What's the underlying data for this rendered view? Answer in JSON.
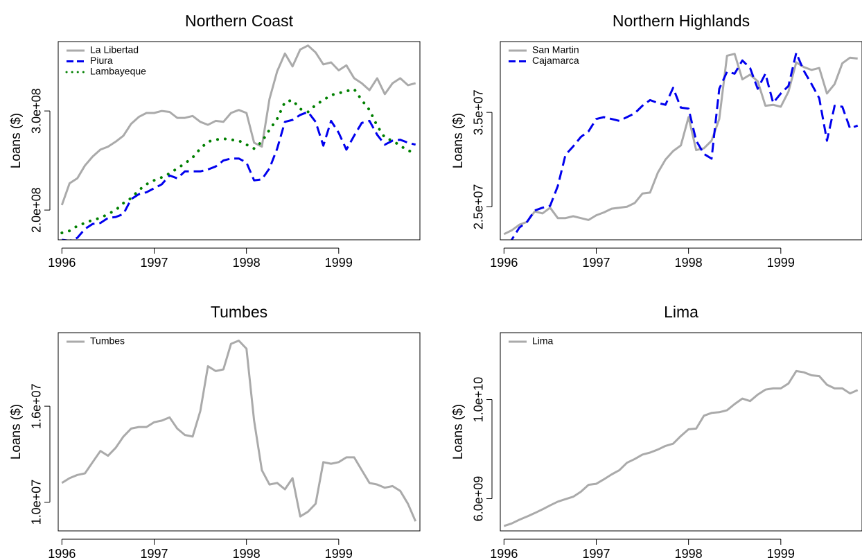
{
  "chart_data": [
    {
      "type": "line",
      "title": "Northern Coast",
      "xlabel": "",
      "ylabel": "Loans ($)",
      "xlim": [
        1995.96,
        1999.88
      ],
      "ylim": [
        170000000,
        370000000
      ],
      "xticks": [
        {
          "v": 1996,
          "label": "1996"
        },
        {
          "v": 1997,
          "label": "1997"
        },
        {
          "v": 1998,
          "label": "1998"
        },
        {
          "v": 1999,
          "label": "1999"
        }
      ],
      "yticks": [
        {
          "v": 200000000,
          "label": "2.0e+08"
        },
        {
          "v": 300000000,
          "label": "3.0e+08"
        }
      ],
      "legend": "top-left",
      "x": [
        1996.0,
        1996.083,
        1996.167,
        1996.25,
        1996.333,
        1996.417,
        1996.5,
        1996.583,
        1996.667,
        1996.75,
        1996.833,
        1996.917,
        1997.0,
        1997.083,
        1997.167,
        1997.25,
        1997.333,
        1997.417,
        1997.5,
        1997.583,
        1997.667,
        1997.75,
        1997.833,
        1997.917,
        1998.0,
        1998.083,
        1998.167,
        1998.25,
        1998.333,
        1998.417,
        1998.5,
        1998.583,
        1998.667,
        1998.75,
        1998.833,
        1998.917,
        1999.0,
        1999.083,
        1999.167,
        1999.25,
        1999.333,
        1999.417,
        1999.5,
        1999.583,
        1999.667,
        1999.75,
        1999.833
      ],
      "series": [
        {
          "name": "La Libertad",
          "color": "#aaaaaa",
          "dash": "solid",
          "values": [
            205000000,
            227000000,
            232000000,
            245000000,
            254000000,
            261000000,
            264000000,
            269000000,
            275000000,
            287000000,
            294000000,
            298000000,
            298000000,
            300000000,
            299000000,
            293000000,
            293000000,
            295000000,
            289000000,
            286000000,
            290000000,
            289000000,
            298000000,
            301000000,
            298000000,
            268000000,
            264000000,
            312000000,
            340000000,
            358000000,
            345000000,
            362000000,
            366000000,
            359000000,
            347000000,
            349000000,
            341000000,
            346000000,
            333000000,
            328000000,
            321000000,
            333000000,
            317000000,
            328000000,
            333000000,
            326000000,
            328000000
          ]
        },
        {
          "name": "Piura",
          "color": "#0000ee",
          "dash": "dashed",
          "values": [
            170000000,
            169000000,
            172000000,
            181000000,
            186000000,
            187000000,
            192000000,
            193000000,
            196000000,
            211000000,
            216000000,
            218000000,
            222000000,
            226000000,
            235000000,
            232000000,
            239000000,
            239000000,
            239000000,
            241000000,
            244000000,
            250000000,
            252000000,
            252000000,
            248000000,
            230000000,
            231000000,
            242000000,
            262000000,
            289000000,
            291000000,
            296000000,
            299000000,
            289000000,
            265000000,
            290000000,
            278000000,
            261000000,
            275000000,
            288000000,
            290000000,
            276000000,
            266000000,
            270000000,
            271000000,
            268000000,
            266000000
          ]
        },
        {
          "name": "Lambayeque",
          "color": "#008000",
          "dash": "dotted",
          "values": [
            177000000,
            179000000,
            184000000,
            187000000,
            190000000,
            192000000,
            196000000,
            200000000,
            207000000,
            212000000,
            220000000,
            226000000,
            230000000,
            233000000,
            237000000,
            242000000,
            247000000,
            253000000,
            262000000,
            269000000,
            271000000,
            272000000,
            271000000,
            270000000,
            266000000,
            262000000,
            269000000,
            281000000,
            292000000,
            309000000,
            311000000,
            302000000,
            299000000,
            306000000,
            311000000,
            316000000,
            318000000,
            320000000,
            322000000,
            311000000,
            301000000,
            285000000,
            273000000,
            270000000,
            265000000,
            260000000,
            258000000
          ]
        }
      ]
    },
    {
      "type": "line",
      "title": "Northern Highlands",
      "xlabel": "",
      "ylabel": "Loans ($)",
      "xlim": [
        1995.96,
        1999.88
      ],
      "ylim": [
        21500000,
        42500000
      ],
      "xticks": [
        {
          "v": 1996,
          "label": "1996"
        },
        {
          "v": 1997,
          "label": "1997"
        },
        {
          "v": 1998,
          "label": "1998"
        },
        {
          "v": 1999,
          "label": "1999"
        }
      ],
      "yticks": [
        {
          "v": 25000000,
          "label": "2.5e+07"
        },
        {
          "v": 35000000,
          "label": "3.5e+07"
        }
      ],
      "legend": "top-left",
      "x": [
        1996.0,
        1996.083,
        1996.167,
        1996.25,
        1996.333,
        1996.417,
        1996.5,
        1996.583,
        1996.667,
        1996.75,
        1996.833,
        1996.917,
        1997.0,
        1997.083,
        1997.167,
        1997.25,
        1997.333,
        1997.417,
        1997.5,
        1997.583,
        1997.667,
        1997.75,
        1997.833,
        1997.917,
        1998.0,
        1998.083,
        1998.167,
        1998.25,
        1998.333,
        1998.417,
        1998.5,
        1998.583,
        1998.667,
        1998.75,
        1998.833,
        1998.917,
        1999.0,
        1999.083,
        1999.167,
        1999.25,
        1999.333,
        1999.417,
        1999.5,
        1999.583,
        1999.667,
        1999.75,
        1999.833
      ],
      "series": [
        {
          "name": "San Martin",
          "color": "#aaaaaa",
          "dash": "solid",
          "values": [
            22100000,
            22500000,
            23100000,
            23400000,
            24500000,
            24300000,
            24900000,
            23800000,
            23800000,
            24000000,
            23800000,
            23600000,
            24100000,
            24400000,
            24800000,
            24900000,
            25000000,
            25400000,
            26400000,
            26500000,
            28600000,
            30000000,
            30900000,
            31500000,
            34500000,
            31000000,
            31200000,
            32000000,
            34300000,
            41000000,
            41200000,
            38500000,
            39000000,
            38300000,
            35700000,
            35800000,
            35600000,
            37200000,
            40300000,
            39800000,
            39500000,
            39700000,
            37000000,
            38000000,
            40200000,
            40800000,
            40700000
          ]
        },
        {
          "name": "Cajamarca",
          "color": "#0000ee",
          "dash": "dashed",
          "values": [
            19500000,
            21500000,
            22800000,
            23400000,
            24600000,
            24900000,
            25100000,
            27200000,
            30500000,
            31400000,
            32400000,
            33000000,
            34300000,
            34500000,
            34300000,
            34100000,
            34500000,
            34900000,
            35700000,
            36300000,
            36000000,
            35800000,
            37600000,
            35500000,
            35400000,
            32000000,
            30600000,
            30100000,
            37500000,
            39300000,
            39100000,
            40500000,
            39700000,
            37500000,
            39100000,
            36000000,
            37000000,
            37800000,
            41300000,
            39400000,
            38000000,
            36500000,
            32000000,
            35700000,
            35600000,
            33300000,
            33600000
          ]
        }
      ]
    },
    {
      "type": "line",
      "title": "Tumbes",
      "xlabel": "",
      "ylabel": "Loans ($)",
      "xlim": [
        1995.96,
        1999.88
      ],
      "ylim": [
        8200000,
        20600000
      ],
      "xticks": [
        {
          "v": 1996,
          "label": "1996"
        },
        {
          "v": 1997,
          "label": "1997"
        },
        {
          "v": 1998,
          "label": "1998"
        },
        {
          "v": 1999,
          "label": "1999"
        }
      ],
      "yticks": [
        {
          "v": 10000000,
          "label": "1.0e+07"
        },
        {
          "v": 16000000,
          "label": "1.6e+07"
        }
      ],
      "legend": "top-left",
      "x": [
        1996.0,
        1996.083,
        1996.167,
        1996.25,
        1996.333,
        1996.417,
        1996.5,
        1996.583,
        1996.667,
        1996.75,
        1996.833,
        1996.917,
        1997.0,
        1997.083,
        1997.167,
        1997.25,
        1997.333,
        1997.417,
        1997.5,
        1997.583,
        1997.667,
        1997.75,
        1997.833,
        1997.917,
        1998.0,
        1998.083,
        1998.167,
        1998.25,
        1998.333,
        1998.417,
        1998.5,
        1998.583,
        1998.667,
        1998.75,
        1998.833,
        1998.917,
        1999.0,
        1999.083,
        1999.167,
        1999.25,
        1999.333,
        1999.417,
        1999.5,
        1999.583,
        1999.667,
        1999.75,
        1999.833
      ],
      "series": [
        {
          "name": "Tumbes",
          "color": "#aaaaaa",
          "dash": "solid",
          "values": [
            11200000,
            11500000,
            11700000,
            11800000,
            12500000,
            13200000,
            12900000,
            13400000,
            14100000,
            14600000,
            14700000,
            14700000,
            15000000,
            15100000,
            15300000,
            14600000,
            14200000,
            14100000,
            15700000,
            18500000,
            18200000,
            18300000,
            19900000,
            20100000,
            19600000,
            15100000,
            12000000,
            11100000,
            11200000,
            10800000,
            11500000,
            9100000,
            9400000,
            9900000,
            12500000,
            12400000,
            12500000,
            12800000,
            12800000,
            12000000,
            11200000,
            11100000,
            10900000,
            11000000,
            10700000,
            9900000,
            8800000
          ]
        }
      ]
    },
    {
      "type": "line",
      "title": "Lima",
      "xlabel": "",
      "ylabel": "Loans ($)",
      "xlim": [
        1995.96,
        1999.88
      ],
      "ylim": [
        4700000000,
        12700000000
      ],
      "xticks": [
        {
          "v": 1996,
          "label": "1996"
        },
        {
          "v": 1997,
          "label": "1997"
        },
        {
          "v": 1998,
          "label": "1998"
        },
        {
          "v": 1999,
          "label": "1999"
        }
      ],
      "yticks": [
        {
          "v": 6000000000,
          "label": "6.0e+09"
        },
        {
          "v": 10000000000,
          "label": "1.0e+10"
        }
      ],
      "legend": "top-left",
      "x": [
        1996.0,
        1996.083,
        1996.167,
        1996.25,
        1996.333,
        1996.417,
        1996.5,
        1996.583,
        1996.667,
        1996.75,
        1996.833,
        1996.917,
        1997.0,
        1997.083,
        1997.167,
        1997.25,
        1997.333,
        1997.417,
        1997.5,
        1997.583,
        1997.667,
        1997.75,
        1997.833,
        1997.917,
        1998.0,
        1998.083,
        1998.167,
        1998.25,
        1998.333,
        1998.417,
        1998.5,
        1998.583,
        1998.667,
        1998.75,
        1998.833,
        1998.917,
        1999.0,
        1999.083,
        1999.167,
        1999.25,
        1999.333,
        1999.417,
        1999.5,
        1999.583,
        1999.667,
        1999.75,
        1999.833
      ],
      "series": [
        {
          "name": "Lima",
          "color": "#aaaaaa",
          "dash": "solid",
          "values": [
            4900000000,
            5000000000,
            5150000000,
            5280000000,
            5420000000,
            5570000000,
            5730000000,
            5880000000,
            5980000000,
            6080000000,
            6280000000,
            6560000000,
            6600000000,
            6780000000,
            6980000000,
            7150000000,
            7450000000,
            7600000000,
            7780000000,
            7860000000,
            7980000000,
            8130000000,
            8220000000,
            8530000000,
            8800000000,
            8830000000,
            9350000000,
            9460000000,
            9490000000,
            9570000000,
            9820000000,
            10040000000,
            9940000000,
            10200000000,
            10400000000,
            10450000000,
            10450000000,
            10650000000,
            11150000000,
            11100000000,
            10980000000,
            10950000000,
            10600000000,
            10450000000,
            10450000000,
            10250000000,
            10380000000
          ]
        }
      ]
    }
  ]
}
